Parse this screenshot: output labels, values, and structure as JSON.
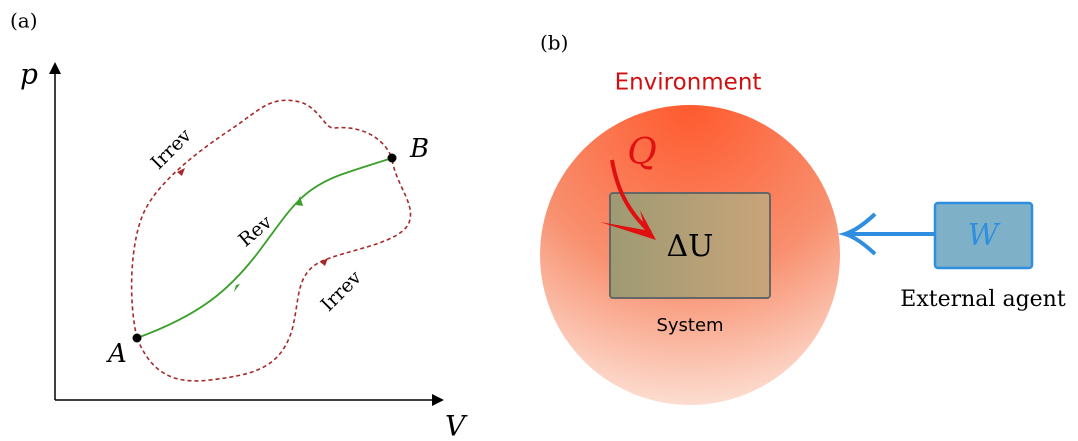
{
  "panel_a": {
    "label": "(a)",
    "y_axis": "p",
    "x_axis": "V",
    "point_a": "A",
    "point_b": "B",
    "rev_path": "Rev",
    "irrev_upper": "Irrev",
    "irrev_lower": "Irrev"
  },
  "panel_b": {
    "label": "(b)",
    "environment": "Environment",
    "heat": "Q",
    "internal_energy": "ΔU",
    "system": "System",
    "work": "W",
    "external_agent": "External agent"
  }
}
